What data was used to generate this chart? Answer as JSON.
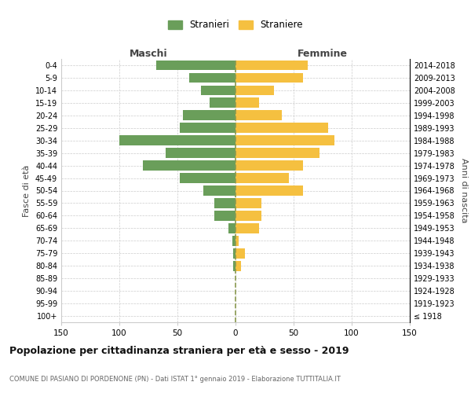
{
  "age_groups": [
    "100+",
    "95-99",
    "90-94",
    "85-89",
    "80-84",
    "75-79",
    "70-74",
    "65-69",
    "60-64",
    "55-59",
    "50-54",
    "45-49",
    "40-44",
    "35-39",
    "30-34",
    "25-29",
    "20-24",
    "15-19",
    "10-14",
    "5-9",
    "0-4"
  ],
  "birth_years": [
    "≤ 1918",
    "1919-1923",
    "1924-1928",
    "1929-1933",
    "1934-1938",
    "1939-1943",
    "1944-1948",
    "1949-1953",
    "1954-1958",
    "1959-1963",
    "1964-1968",
    "1969-1973",
    "1974-1978",
    "1979-1983",
    "1984-1988",
    "1989-1993",
    "1994-1998",
    "1999-2003",
    "2004-2008",
    "2009-2013",
    "2014-2018"
  ],
  "maschi": [
    0,
    0,
    0,
    0,
    2,
    2,
    3,
    6,
    18,
    18,
    28,
    48,
    80,
    60,
    100,
    48,
    45,
    22,
    30,
    40,
    68
  ],
  "femmine": [
    0,
    0,
    0,
    0,
    5,
    8,
    3,
    20,
    22,
    22,
    58,
    46,
    58,
    72,
    85,
    80,
    40,
    20,
    33,
    58,
    62
  ],
  "maschi_color": "#6a9e5a",
  "femmine_color": "#f5c040",
  "bg_color": "#ffffff",
  "grid_color": "#cccccc",
  "dashed_line_color": "#8a9a50",
  "xlim": 150,
  "title": "Popolazione per cittadinanza straniera per età e sesso - 2019",
  "subtitle": "COMUNE DI PASIANO DI PORDENONE (PN) - Dati ISTAT 1° gennaio 2019 - Elaborazione TUTTITALIA.IT",
  "ylabel_left": "Fasce di età",
  "ylabel_right": "Anni di nascita",
  "legend_maschi": "Stranieri",
  "legend_femmine": "Straniere",
  "maschi_label": "Maschi",
  "femmine_label": "Femmine"
}
